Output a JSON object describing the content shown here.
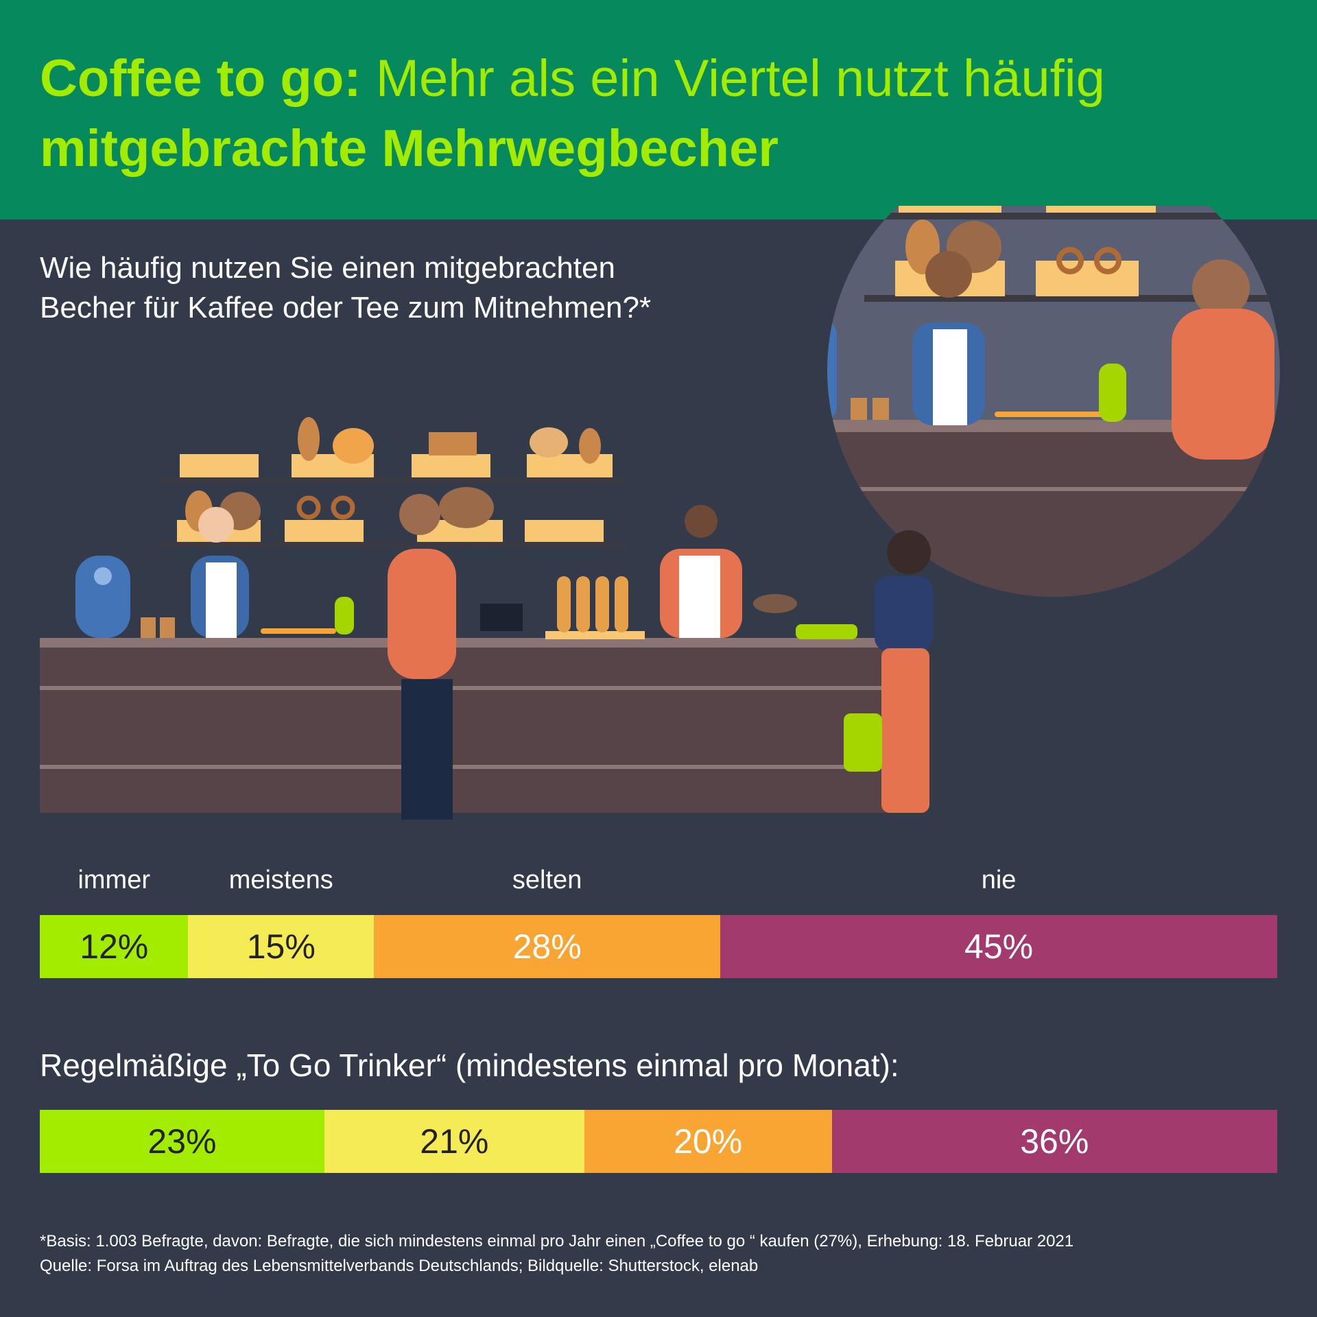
{
  "header": {
    "title_bold": "Coffee to go:",
    "title_regular": " Mehr als ein Viertel nutzt häufig",
    "title_line2": "mitgebrachte Mehrwegbecher"
  },
  "question": {
    "line1": "Wie häufig nutzen Sie einen mitgebrachten",
    "line2": "Becher für Kaffee oder Tee zum Mitnehmen?*"
  },
  "colors": {
    "background": "#333a4a",
    "header": "#068a5d",
    "title": "#a3ec00",
    "immer": "#a3ec00",
    "meistens": "#f5ec55",
    "selten": "#f8a533",
    "nie": "#a33a6e"
  },
  "chart_data": [
    {
      "type": "bar",
      "stacked": true,
      "orientation": "horizontal",
      "categories": [
        "immer",
        "meistens",
        "selten",
        "nie"
      ],
      "values": [
        12,
        15,
        28,
        45
      ],
      "labels": [
        "12%",
        "15%",
        "28%",
        "45%"
      ],
      "unit": "%"
    },
    {
      "type": "bar",
      "stacked": true,
      "orientation": "horizontal",
      "title": "Regelmäßige „To Go Trinker“ (mindestens einmal pro Monat):",
      "categories": [
        "immer",
        "meistens",
        "selten",
        "nie"
      ],
      "values": [
        23,
        21,
        20,
        36
      ],
      "labels": [
        "23%",
        "21%",
        "20%",
        "36%"
      ],
      "unit": "%"
    }
  ],
  "footnote": {
    "line1": "*Basis: 1.003 Befragte, davon: Befragte, die sich mindestens einmal pro Jahr einen „Coffee to go “ kaufen (27%), Erhebung: 18. Februar 2021",
    "line2": "Quelle: Forsa im Auftrag des Lebensmittelverbands Deutschlands; Bildquelle: Shutterstock, elenab"
  }
}
